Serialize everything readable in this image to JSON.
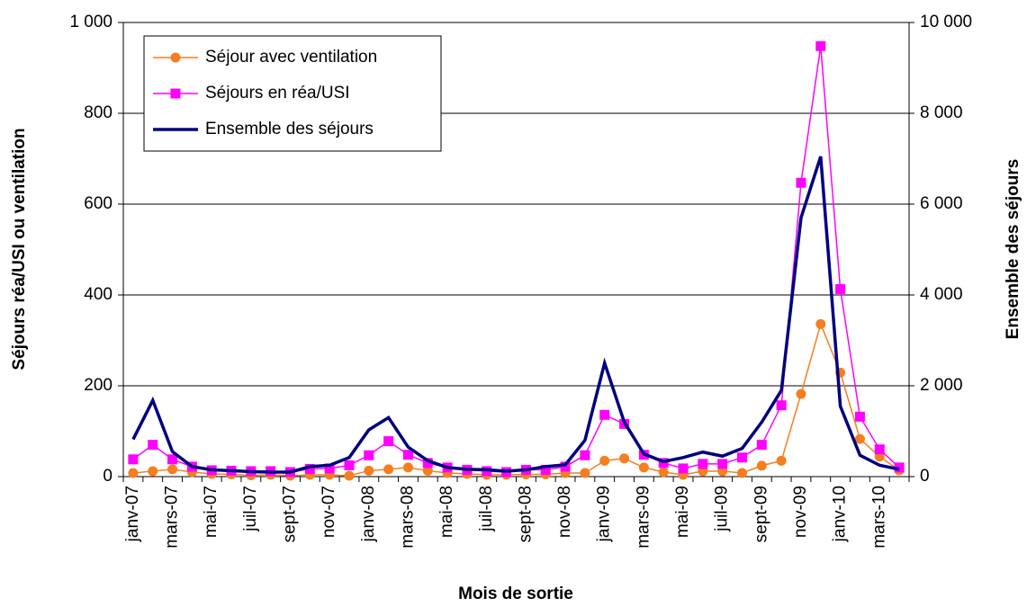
{
  "chart_data": {
    "type": "line",
    "x_label": "Mois de sortie",
    "y_label": "Séjours réa/USI ou ventilation",
    "y2_label": "Ensemble des séjours",
    "categories": [
      "janv-07",
      null,
      "mars-07",
      null,
      "mai-07",
      null,
      "juil-07",
      null,
      "sept-07",
      null,
      "nov-07",
      null,
      "janv-08",
      null,
      "mars-08",
      null,
      "mai-08",
      null,
      "juil-08",
      null,
      "sept-08",
      null,
      "nov-08",
      null,
      "janv-09",
      null,
      "mars-09",
      null,
      "mai-09",
      null,
      "juil-09",
      null,
      "sept-09",
      null,
      "nov-09",
      null,
      "janv-10",
      null,
      "mars-10",
      null
    ],
    "series": [
      {
        "name": "Séjour avec ventilation",
        "color": "#f47f20",
        "marker": "circle",
        "values": [
          8,
          12,
          16,
          10,
          6,
          5,
          3,
          4,
          2,
          4,
          4,
          2,
          13,
          16,
          20,
          13,
          8,
          6,
          4,
          4,
          5,
          5,
          8,
          8,
          35,
          40,
          20,
          10,
          4,
          12,
          12,
          8,
          24,
          35,
          182,
          336,
          229,
          83,
          44,
          14
        ]
      },
      {
        "name": "Séjours en réa/USI",
        "color": "#ff00ff",
        "marker": "square",
        "values": [
          38,
          70,
          38,
          22,
          14,
          13,
          12,
          12,
          10,
          17,
          18,
          25,
          47,
          78,
          48,
          30,
          20,
          15,
          12,
          10,
          15,
          15,
          22,
          47,
          136,
          116,
          48,
          30,
          18,
          28,
          28,
          42,
          70,
          157,
          647,
          948,
          413,
          132,
          60,
          20
        ]
      },
      {
        "name": "Ensemble des séjours",
        "color": "#000080",
        "marker": "none",
        "axis": "y2",
        "values": [
          820,
          1680,
          550,
          220,
          150,
          130,
          110,
          100,
          100,
          220,
          250,
          420,
          1030,
          1300,
          650,
          350,
          200,
          160,
          150,
          120,
          150,
          220,
          260,
          800,
          2500,
          1200,
          500,
          330,
          420,
          540,
          450,
          620,
          1200,
          1900,
          5700,
          7050,
          1550,
          470,
          250,
          160
        ]
      }
    ],
    "ylim": [
      0,
      1000
    ],
    "yticks": [
      0,
      200,
      400,
      600,
      800,
      {
        "value": 1000,
        "label": "1 000"
      }
    ],
    "y2lim": [
      0,
      10000
    ],
    "y2ticks": [
      0,
      {
        "value": 2000,
        "label": "2 000"
      },
      {
        "value": 4000,
        "label": "4 000"
      },
      {
        "value": 6000,
        "label": "6 000"
      },
      {
        "value": 8000,
        "label": "8 000"
      },
      {
        "value": 10000,
        "label": "10 000"
      }
    ],
    "grid": true,
    "legend": "top-left"
  }
}
